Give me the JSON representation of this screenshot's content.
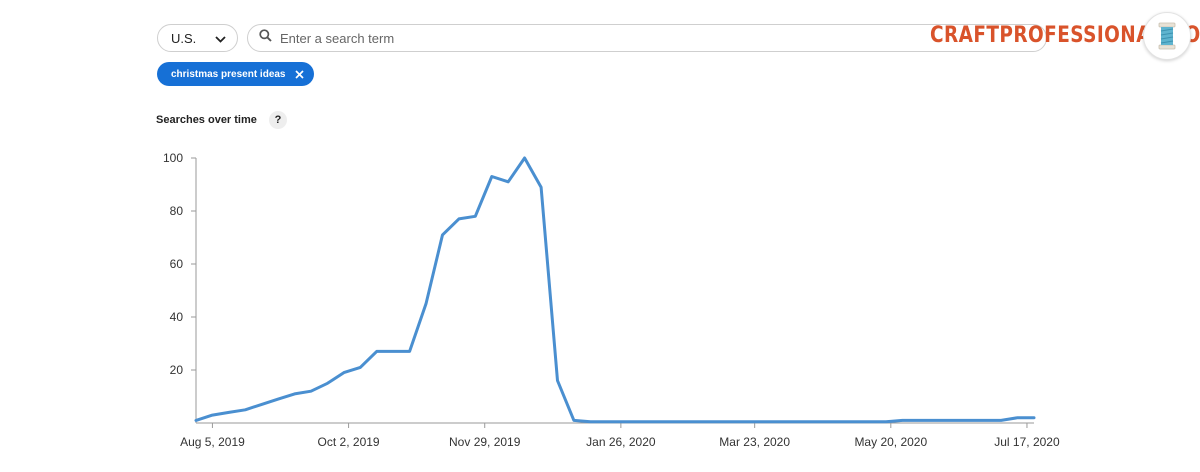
{
  "header": {
    "country": "U.S.",
    "search_placeholder": "Enter a search term",
    "search_value": ""
  },
  "chip": {
    "label": "christmas present ideas"
  },
  "brand": {
    "text": "CRAFTPROFESSIONAL.COM",
    "color": "#d9532b"
  },
  "section": {
    "title": "Searches over time",
    "help": "?"
  },
  "icons": {
    "country_dropdown": "chevron-down-icon",
    "search": "search-icon",
    "chip_remove": "close-icon",
    "brand_logo": "thread-spool-icon"
  },
  "chart_data": {
    "type": "line",
    "title": "Searches over time",
    "xlabel": "",
    "ylabel": "",
    "ylim": [
      0,
      100
    ],
    "yticks": [
      20,
      40,
      60,
      80,
      100
    ],
    "xticks": [
      "2019-08-05",
      "2019-10-02",
      "2019-11-29",
      "2020-01-26",
      "2020-03-23",
      "2020-05-20",
      "2020-07-17"
    ],
    "xtick_labels": [
      "Aug 5, 2019",
      "Oct 2, 2019",
      "Nov 29, 2019",
      "Jan 26, 2020",
      "Mar 23, 2020",
      "May 20, 2020",
      "Jul 17, 2020"
    ],
    "xlim": [
      "2019-07-29",
      "2020-07-20"
    ],
    "line_color": "#4a8fd0",
    "grid": false,
    "series": [
      {
        "x": [
          "2019-07-29",
          "2019-08-05",
          "2019-08-12",
          "2019-08-19",
          "2019-08-26",
          "2019-09-02",
          "2019-09-09",
          "2019-09-16",
          "2019-09-23",
          "2019-09-30",
          "2019-10-07",
          "2019-10-14",
          "2019-10-21",
          "2019-10-28",
          "2019-11-04",
          "2019-11-11",
          "2019-11-18",
          "2019-11-25",
          "2019-12-02",
          "2019-12-09",
          "2019-12-16",
          "2019-12-23",
          "2019-12-30",
          "2020-01-06",
          "2020-01-13",
          "2020-01-20",
          "2020-05-18",
          "2020-05-25",
          "2020-06-01",
          "2020-06-29",
          "2020-07-06",
          "2020-07-13",
          "2020-07-20"
        ],
        "values": [
          1,
          3,
          4,
          5,
          7,
          9,
          11,
          12,
          15,
          19,
          21,
          27,
          27,
          27,
          45,
          71,
          77,
          78,
          93,
          91,
          100,
          89,
          16,
          1,
          0.5,
          0.5,
          0.5,
          1,
          1,
          1,
          1,
          2,
          2
        ]
      }
    ]
  }
}
